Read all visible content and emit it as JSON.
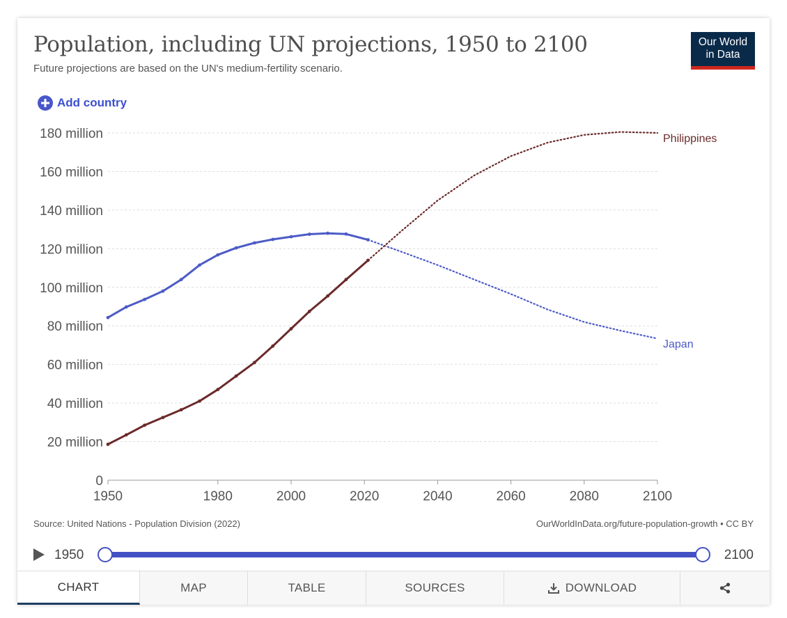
{
  "title": "Population, including UN projections, 1950 to 2100",
  "subtitle": "Future projections are based on the UN's medium-fertility scenario.",
  "logo": {
    "line1": "Our World",
    "line2": "in Data"
  },
  "add_country_label": "Add country",
  "source": "Source: United Nations - Population Division (2022)",
  "credit": "OurWorldInData.org/future-population-growth • CC BY",
  "timeline": {
    "start": "1950",
    "end": "2100"
  },
  "tabs": [
    {
      "label": "CHART",
      "icon": ""
    },
    {
      "label": "MAP",
      "icon": ""
    },
    {
      "label": "TABLE",
      "icon": ""
    },
    {
      "label": "SOURCES",
      "icon": ""
    },
    {
      "label": "DOWNLOAD",
      "icon": "download-icon"
    },
    {
      "label": "",
      "icon": "share-icon"
    }
  ],
  "colors": {
    "japan": "#4c5bc6",
    "philippines": "#6b2a2a",
    "axis": "#999999",
    "grid": "#dddddd",
    "text": "#555555"
  },
  "chart_data": {
    "type": "line",
    "title": "Population, including UN projections, 1950 to 2100",
    "xlabel": "",
    "ylabel": "",
    "xlim": [
      1950,
      2100
    ],
    "ylim": [
      0,
      180
    ],
    "x_ticks": [
      1950,
      1980,
      2000,
      2020,
      2040,
      2060,
      2080,
      2100
    ],
    "x_tick_labels": [
      "1950",
      "1980",
      "2000",
      "2020",
      "2040",
      "2060",
      "2080",
      "2100"
    ],
    "y_ticks": [
      0,
      20,
      40,
      60,
      80,
      100,
      120,
      140,
      160,
      180
    ],
    "y_tick_labels": [
      "0",
      "20 million",
      "40 million",
      "60 million",
      "80 million",
      "100 million",
      "120 million",
      "140 million",
      "160 million",
      "180 million"
    ],
    "grid": true,
    "projection_start_year": 2021,
    "series": [
      {
        "name": "Japan",
        "label": "Japan",
        "unit": "million",
        "points": [
          [
            1950,
            84.3
          ],
          [
            1955,
            89.8
          ],
          [
            1960,
            93.7
          ],
          [
            1965,
            98.0
          ],
          [
            1970,
            104.0
          ],
          [
            1975,
            111.5
          ],
          [
            1980,
            116.8
          ],
          [
            1985,
            120.4
          ],
          [
            1990,
            123.0
          ],
          [
            1995,
            124.8
          ],
          [
            2000,
            126.2
          ],
          [
            2005,
            127.5
          ],
          [
            2010,
            128.0
          ],
          [
            2015,
            127.6
          ],
          [
            2021,
            124.6
          ],
          [
            2030,
            118.5
          ],
          [
            2040,
            111.5
          ],
          [
            2050,
            104.0
          ],
          [
            2060,
            96.5
          ],
          [
            2070,
            88.5
          ],
          [
            2080,
            82.0
          ],
          [
            2090,
            77.5
          ],
          [
            2100,
            73.4
          ]
        ]
      },
      {
        "name": "Philippines",
        "label": "Philippines",
        "unit": "million",
        "points": [
          [
            1950,
            18.6
          ],
          [
            1955,
            23.5
          ],
          [
            1960,
            28.5
          ],
          [
            1965,
            32.5
          ],
          [
            1970,
            36.5
          ],
          [
            1975,
            41.0
          ],
          [
            1980,
            47.0
          ],
          [
            1985,
            54.0
          ],
          [
            1990,
            61.0
          ],
          [
            1995,
            69.5
          ],
          [
            2000,
            78.5
          ],
          [
            2005,
            87.5
          ],
          [
            2010,
            95.5
          ],
          [
            2015,
            104.0
          ],
          [
            2021,
            114.0
          ],
          [
            2030,
            129.0
          ],
          [
            2040,
            145.0
          ],
          [
            2050,
            158.0
          ],
          [
            2060,
            168.0
          ],
          [
            2070,
            175.0
          ],
          [
            2080,
            179.0
          ],
          [
            2090,
            180.5
          ],
          [
            2100,
            180.0
          ]
        ]
      }
    ]
  }
}
